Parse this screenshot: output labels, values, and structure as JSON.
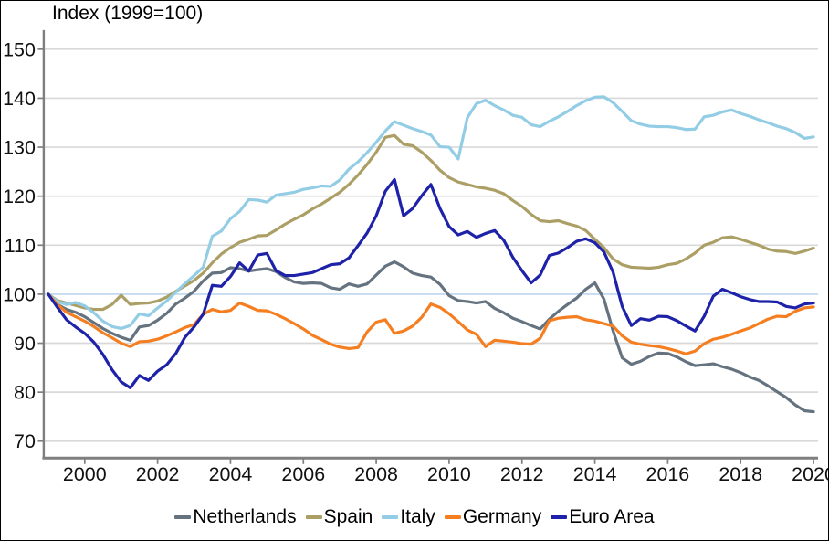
{
  "chart": {
    "title": "Index (1999=100)"
  },
  "chart_data": {
    "type": "line",
    "title": "Index (1999=100)",
    "x_start": 1999.0,
    "x_step": 0.25,
    "x_tick_years": [
      2000,
      2002,
      2004,
      2006,
      2008,
      2010,
      2012,
      2014,
      2016,
      2018,
      2020
    ],
    "x_tick_labels": [
      "2000",
      "2002",
      "2004",
      "2006",
      "2008",
      "2010",
      "2012",
      "2014",
      "2016",
      "2018",
      "2020"
    ],
    "y_ticks": [
      150,
      140,
      130,
      120,
      110,
      100,
      90,
      80,
      70
    ],
    "xlim": [
      1998.85,
      2020.15
    ],
    "ylim": [
      66.5,
      152.5
    ],
    "grid": "horizontal",
    "legend_position": "bottom",
    "reference_line": {
      "value": 100,
      "color": "#BDD7EE"
    },
    "axis_color": "#7F7F7F",
    "gridline_color": "#D9D9D9",
    "series": [
      {
        "name": "Netherlands",
        "color": "#64737F",
        "values": [
          100,
          97.9,
          96.9,
          96.3,
          95.4,
          94.2,
          93,
          92,
          91.2,
          90.6,
          93.3,
          93.6,
          94.7,
          96.1,
          98,
          99.2,
          100.6,
          102.7,
          104.3,
          104.4,
          105.4,
          105.2,
          104.7,
          105,
          105.2,
          104.6,
          103.4,
          102.5,
          102.2,
          102.3,
          102.2,
          101.3,
          101,
          102.1,
          101.6,
          102.1,
          103.9,
          105.7,
          106.6,
          105.6,
          104.3,
          103.8,
          103.5,
          102,
          99.7,
          98.7,
          98.5,
          98.2,
          98.5,
          97.1,
          96.2,
          95.1,
          94.4,
          93.6,
          92.9,
          94.9,
          96.5,
          97.9,
          99.2,
          101,
          102.3,
          99,
          92.5,
          87,
          85.7,
          86.3,
          87.3,
          88,
          87.9,
          87.2,
          86.2,
          85.4,
          85.6,
          85.8,
          85.2,
          84.7,
          84,
          83.1,
          82.4,
          81.3,
          80.1,
          78.9,
          77.4,
          76.2,
          76
        ]
      },
      {
        "name": "Spain",
        "color": "#AC9F66",
        "values": [
          100,
          98.7,
          98.2,
          97.7,
          97.2,
          96.9,
          96.9,
          97.9,
          99.8,
          97.9,
          98.1,
          98.2,
          98.6,
          99.4,
          100.6,
          101.7,
          102.8,
          104.3,
          106.4,
          108.2,
          109.5,
          110.6,
          111.2,
          111.9,
          112,
          113.1,
          114.3,
          115.3,
          116.2,
          117.4,
          118.4,
          119.6,
          120.8,
          122.4,
          124.3,
          126.5,
          129,
          132,
          132.4,
          130.6,
          130.3,
          129,
          127.3,
          125.3,
          123.8,
          122.9,
          122.4,
          121.9,
          121.6,
          121.2,
          120.5,
          119.1,
          117.9,
          116.3,
          115,
          114.8,
          115,
          114.4,
          113.9,
          113,
          111.2,
          109.5,
          107.2,
          106,
          105.5,
          105.4,
          105.3,
          105.5,
          106,
          106.3,
          107.2,
          108.4,
          110,
          110.6,
          111.5,
          111.7,
          111.2,
          110.6,
          110,
          109.2,
          108.8,
          108.7,
          108.3,
          108.8,
          109.4
        ]
      },
      {
        "name": "Italy",
        "color": "#93CDE5",
        "values": [
          100,
          98.5,
          97.9,
          98.3,
          97.6,
          96.2,
          94.5,
          93.4,
          93,
          93.6,
          96,
          95.6,
          97.2,
          98.6,
          100.4,
          102.2,
          103.8,
          105.5,
          111.8,
          112.9,
          115.4,
          116.9,
          119.3,
          119.2,
          118.8,
          120.2,
          120.5,
          120.8,
          121.4,
          121.7,
          122.1,
          122,
          123.3,
          125.5,
          127,
          128.9,
          131,
          133.3,
          135.2,
          134.5,
          133.8,
          133.2,
          132.5,
          130.1,
          130,
          127.6,
          136,
          138.9,
          139.6,
          138.5,
          137.6,
          136.5,
          136.1,
          134.6,
          134.2,
          135.3,
          136.2,
          137.3,
          138.5,
          139.5,
          140.2,
          140.3,
          139.1,
          137.3,
          135.4,
          134.7,
          134.3,
          134.2,
          134.2,
          134,
          133.6,
          133.7,
          136.2,
          136.5,
          137.2,
          137.6,
          136.9,
          136.3,
          135.6,
          135,
          134.3,
          133.8,
          133,
          131.8,
          132.1
        ]
      },
      {
        "name": "Germany",
        "color": "#F57E20",
        "values": [
          100,
          97.9,
          96.3,
          95.4,
          94.5,
          93.4,
          92.1,
          91.1,
          90,
          89.3,
          90.3,
          90.4,
          90.8,
          91.5,
          92.3,
          93.2,
          93.8,
          95.9,
          96.9,
          96.4,
          96.7,
          98.2,
          97.5,
          96.7,
          96.6,
          95.9,
          95,
          94,
          92.9,
          91.6,
          90.7,
          89.8,
          89.2,
          88.9,
          89.1,
          92.3,
          94.3,
          94.8,
          92,
          92.5,
          93.5,
          95.3,
          98,
          97.3,
          96,
          94.4,
          92.7,
          91.8,
          89.3,
          90.6,
          90.4,
          90.2,
          89.9,
          89.8,
          91,
          94.6,
          95.1,
          95.3,
          95.4,
          94.8,
          94.5,
          94,
          93.5,
          91.5,
          90.2,
          89.8,
          89.5,
          89.3,
          88.9,
          88.4,
          87.8,
          88.4,
          89.9,
          90.8,
          91.2,
          91.8,
          92.5,
          93.1,
          94,
          94.9,
          95.5,
          95.4,
          96.5,
          97.2,
          97.4
        ]
      },
      {
        "name": "Euro Area",
        "color": "#1E22A8",
        "values": [
          100,
          97.3,
          94.8,
          93.3,
          92,
          90.2,
          87.7,
          84.6,
          82.1,
          80.9,
          83.4,
          82.4,
          84.3,
          85.6,
          87.9,
          91.2,
          93.3,
          95.9,
          101.8,
          101.6,
          103.6,
          106.4,
          104.7,
          108,
          108.3,
          104.8,
          103.8,
          103.8,
          104.1,
          104.4,
          105.2,
          106,
          106.2,
          107.4,
          109.9,
          112.5,
          116,
          121,
          123.4,
          116,
          117.5,
          120.1,
          122.4,
          117.5,
          113.8,
          112.1,
          112.8,
          111.6,
          112.4,
          113,
          111,
          107.5,
          104.8,
          102.3,
          103.9,
          107.9,
          108.4,
          109.5,
          110.8,
          111.3,
          110.5,
          108.6,
          104.5,
          97.5,
          93.6,
          95,
          94.7,
          95.5,
          95.4,
          94.6,
          93.5,
          92.5,
          95.5,
          99.6,
          101,
          100.3,
          99.5,
          98.9,
          98.5,
          98.5,
          98.4,
          97.5,
          97.2,
          98,
          98.2
        ]
      }
    ]
  }
}
